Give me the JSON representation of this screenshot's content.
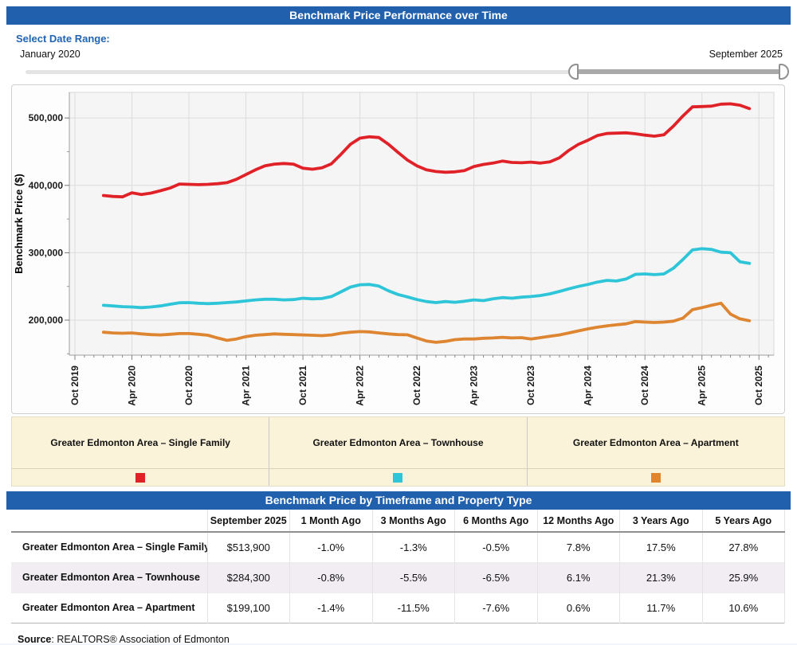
{
  "header": {
    "title": "Benchmark Price Performance over Time"
  },
  "date_range": {
    "label": "Select Date Range:",
    "start_label": "January 2020",
    "end_label": "September 2025"
  },
  "chart_data": {
    "type": "line",
    "ylabel": "Benchmark Price ($)",
    "x_start": "2020-01",
    "x_interval": "month",
    "x_tick_labels": [
      "Oct 2019",
      "Apr 2020",
      "Oct 2020",
      "Apr 2021",
      "Oct 2021",
      "Apr 2022",
      "Oct 2022",
      "Apr 2023",
      "Oct 2023",
      "Apr 2024",
      "Oct 2024",
      "Apr 2025",
      "Oct 2025"
    ],
    "y_ticks": [
      200000,
      300000,
      400000,
      500000
    ],
    "y_minor_ticks": [
      150000,
      250000,
      350000,
      450000
    ],
    "ylim": [
      148000,
      538000
    ],
    "grid": true,
    "series": [
      {
        "name": "Greater Edmonton Area – Single Family",
        "color": "#e02228",
        "values": [
          385000,
          383500,
          383000,
          389000,
          386500,
          388500,
          392000,
          396000,
          402000,
          401500,
          401000,
          401500,
          402500,
          404000,
          409000,
          416000,
          423000,
          429000,
          431500,
          432500,
          431500,
          425500,
          424000,
          426000,
          432000,
          446000,
          461000,
          470000,
          472000,
          471000,
          461000,
          449000,
          437500,
          429000,
          423000,
          420500,
          419500,
          420000,
          422000,
          428000,
          431000,
          433000,
          436000,
          434000,
          433500,
          434500,
          433000,
          435000,
          441000,
          452000,
          461000,
          467000,
          474000,
          477000,
          477500,
          478000,
          476500,
          474500,
          473000,
          475000,
          488000,
          503000,
          516500,
          517000,
          517500,
          520500,
          521000,
          519000,
          513900
        ]
      },
      {
        "name": "Greater Edmonton Area – Townhouse",
        "color": "#2fc5d8",
        "values": [
          222000,
          221000,
          220000,
          219500,
          218500,
          219500,
          221000,
          223500,
          225800,
          226000,
          225000,
          224500,
          225000,
          226000,
          227000,
          228500,
          230000,
          231000,
          231000,
          230000,
          230500,
          232500,
          231500,
          232000,
          235000,
          242000,
          249000,
          252500,
          253000,
          250500,
          243500,
          238000,
          234400,
          230500,
          227500,
          226000,
          227500,
          226500,
          228000,
          230000,
          229000,
          231500,
          233500,
          232500,
          234000,
          235000,
          236500,
          239000,
          242500,
          246500,
          250000,
          253000,
          256500,
          259000,
          258000,
          261000,
          268000,
          268500,
          267500,
          268500,
          277000,
          290000,
          304100,
          306000,
          305000,
          300800,
          300000,
          286600,
          284300
        ]
      },
      {
        "name": "Greater Edmonton Area – Apartment",
        "color": "#de8531",
        "values": [
          182000,
          181000,
          180500,
          181000,
          179500,
          178500,
          178000,
          179000,
          180000,
          180000,
          179000,
          177500,
          173500,
          170000,
          172000,
          175500,
          177500,
          178500,
          179500,
          179000,
          178500,
          178000,
          177500,
          177000,
          178000,
          180500,
          182000,
          183000,
          182500,
          181000,
          179500,
          178500,
          178200,
          173500,
          169000,
          167000,
          168500,
          171000,
          172000,
          172000,
          173000,
          173500,
          174500,
          173500,
          174000,
          172000,
          174000,
          176000,
          178000,
          181000,
          184000,
          187000,
          189500,
          191500,
          193000,
          194500,
          197900,
          197000,
          196500,
          197000,
          198500,
          203000,
          215500,
          218500,
          222000,
          225000,
          209000,
          201900,
          199100
        ]
      }
    ]
  },
  "legend": {
    "items": [
      {
        "label": "Greater Edmonton Area – Single Family",
        "color": "#e02228"
      },
      {
        "label": "Greater Edmonton Area – Townhouse",
        "color": "#2fc5d8"
      },
      {
        "label": "Greater Edmonton Area – Apartment",
        "color": "#de8531"
      }
    ]
  },
  "table": {
    "title": "Benchmark Price by Timeframe and Property Type",
    "columns": [
      "",
      "September 2025",
      "1 Month Ago",
      "3 Months Ago",
      "6 Months Ago",
      "12 Months Ago",
      "3 Years Ago",
      "5 Years Ago"
    ],
    "rows": [
      {
        "label": "Greater Edmonton Area – Single Family",
        "values": [
          "$513,900",
          "-1.0%",
          "-1.3%",
          "-0.5%",
          "7.8%",
          "17.5%",
          "27.8%"
        ]
      },
      {
        "label": "Greater Edmonton Area – Townhouse",
        "values": [
          "$284,300",
          "-0.8%",
          "-5.5%",
          "-6.5%",
          "6.1%",
          "21.3%",
          "25.9%"
        ]
      },
      {
        "label": "Greater Edmonton Area – Apartment",
        "values": [
          "$199,100",
          "-1.4%",
          "-11.5%",
          "-7.6%",
          "0.6%",
          "11.7%",
          "10.6%"
        ]
      }
    ]
  },
  "source": {
    "bold": "Source",
    "rest": ": REALTORS® Association of Edmonton"
  }
}
